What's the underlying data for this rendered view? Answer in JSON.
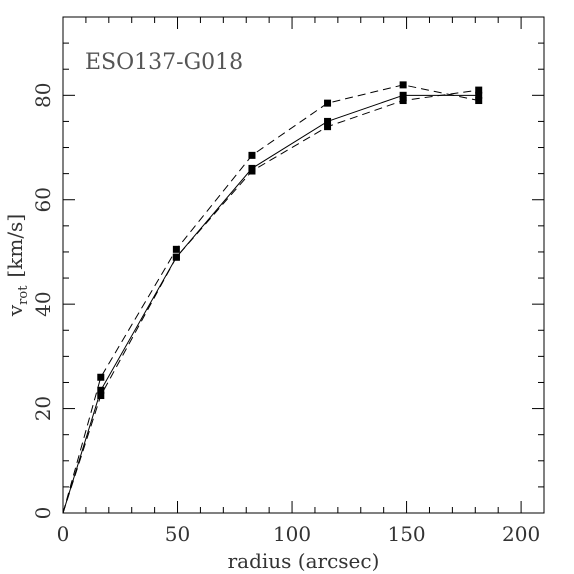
{
  "chart_data": {
    "type": "line",
    "title": "ESO137-G018",
    "xlabel": "radius (arcsec)",
    "ylabel": "v",
    "ylabel_subscript": "rot",
    "ylabel_unit": "[km/s]",
    "xlim": [
      0,
      210
    ],
    "ylim": [
      0,
      95
    ],
    "xticks": [
      0,
      50,
      100,
      150,
      200
    ],
    "yticks": [
      0,
      20,
      40,
      60,
      80
    ],
    "x_minor_step": 10,
    "y_minor_step": 5,
    "grid": false,
    "series": [
      {
        "style": "solid",
        "x": [
          0,
          16.5,
          49.5,
          82.5,
          115.5,
          148.5,
          181.5
        ],
        "y": [
          0,
          23.5,
          49.0,
          66.0,
          75.0,
          80.0,
          80.0
        ]
      },
      {
        "style": "dashed",
        "x": [
          0,
          16.5,
          49.5,
          82.5,
          115.5,
          148.5,
          181.5
        ],
        "y": [
          0,
          26.0,
          50.5,
          68.5,
          78.5,
          82.0,
          79.0
        ]
      },
      {
        "style": "dashed",
        "x": [
          0,
          16.5,
          49.5,
          82.5,
          115.5,
          148.5,
          181.5
        ],
        "y": [
          0,
          22.5,
          49.0,
          65.5,
          74.0,
          79.0,
          81.0
        ]
      }
    ]
  }
}
